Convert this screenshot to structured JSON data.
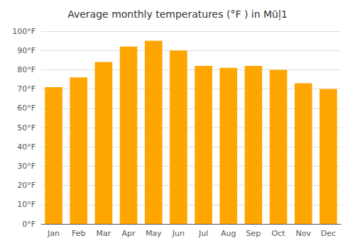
{
  "chart_data": {
    "type": "bar",
    "title": "Average monthly temperatures (°F ) in Mūļ1",
    "categories": [
      "Jan",
      "Feb",
      "Mar",
      "Apr",
      "May",
      "Jun",
      "Jul",
      "Aug",
      "Sep",
      "Oct",
      "Nov",
      "Dec"
    ],
    "values": [
      71,
      76,
      84,
      92,
      95,
      90,
      82,
      81,
      82,
      80,
      73,
      70
    ],
    "color": "#FFA500",
    "ylim": [
      0,
      100
    ],
    "yticks": [
      {
        "value": 0,
        "label": "0°F"
      },
      {
        "value": 10,
        "label": "10°F"
      },
      {
        "value": 20,
        "label": "20°F"
      },
      {
        "value": 30,
        "label": "30°F"
      },
      {
        "value": 40,
        "label": "40°F"
      },
      {
        "value": 50,
        "label": "50°F"
      },
      {
        "value": 60,
        "label": "60°F"
      },
      {
        "value": 70,
        "label": "70°F"
      },
      {
        "value": 80,
        "label": "80°F"
      },
      {
        "value": 90,
        "label": "90°F"
      },
      {
        "value": 100,
        "label": "100°F"
      }
    ],
    "grid": true
  }
}
